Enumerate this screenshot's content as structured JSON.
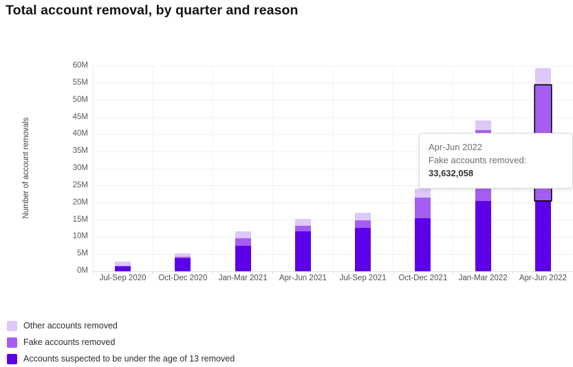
{
  "tooltip": {
    "title": "Apr-Jun 2022",
    "label": "Fake accounts removed: ",
    "value": "33,632,058"
  },
  "chart_data": {
    "type": "bar",
    "stacked": true,
    "title": "Total account removal, by quarter and reason",
    "xlabel": "",
    "ylabel": "Number of account removals",
    "unit": "millions of accounts",
    "ylim": [
      0,
      60
    ],
    "ytick_labels": [
      "0M",
      "5M",
      "10M",
      "15M",
      "20M",
      "25M",
      "30M",
      "35M",
      "40M",
      "45M",
      "50M",
      "55M",
      "60M"
    ],
    "grid": "horizontal",
    "legend_position": "bottom-left",
    "categories": [
      "Jul-Sep 2020",
      "Oct-Dec 2020",
      "Jan-Mar 2021",
      "Apr-Jun 2021",
      "Jul-Sep 2021",
      "Oct-Dec 2021",
      "Jan-Mar 2022",
      "Apr-Jun 2022"
    ],
    "series": [
      {
        "name": "Accounts suspected to be under the age of 13 removed",
        "color": "#5d00ea",
        "values": [
          1.4,
          3.9,
          7.5,
          11.6,
          12.7,
          15.5,
          20.6,
          20.7
        ]
      },
      {
        "name": "Fake accounts removed",
        "color": "#a55ef2",
        "values": [
          0.2,
          0.3,
          2.2,
          1.7,
          2.2,
          6.0,
          20.7,
          33.632058
        ]
      },
      {
        "name": "Other accounts removed",
        "color": "#ddc8f8",
        "values": [
          1.2,
          1.1,
          1.9,
          2.0,
          2.2,
          2.6,
          2.9,
          5.0
        ]
      }
    ],
    "highlight": {
      "category_index": 7,
      "series_index": 1
    }
  }
}
